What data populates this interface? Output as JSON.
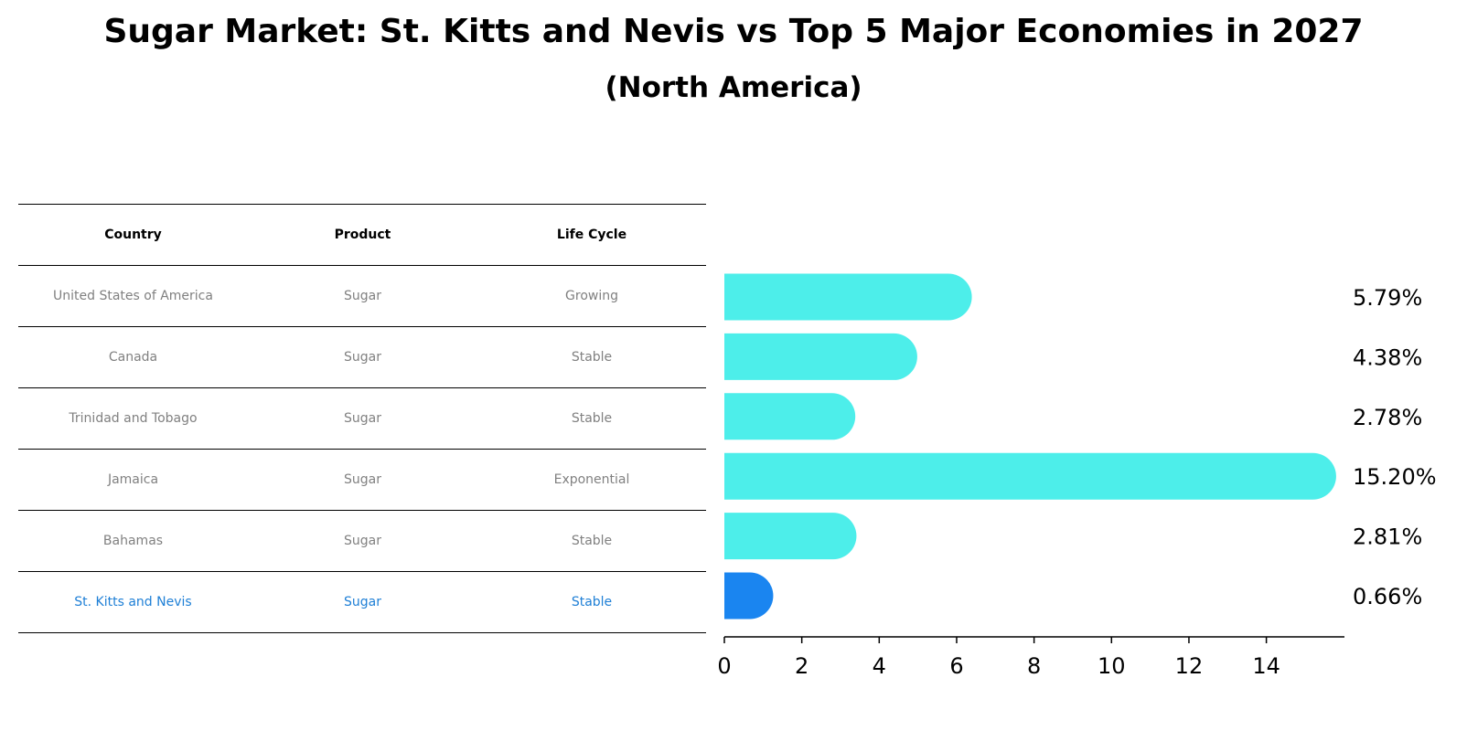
{
  "title": "Sugar Market: St. Kitts and Nevis vs Top 5 Major Economies in 2027",
  "subtitle": "(North America)",
  "table": {
    "headers": [
      "Country",
      "Product",
      "Life Cycle"
    ],
    "rows": [
      [
        "United States of America",
        "Sugar",
        "Growing"
      ],
      [
        "Canada",
        "Sugar",
        "Stable"
      ],
      [
        "Trinidad and Tobago",
        "Sugar",
        "Stable"
      ],
      [
        "Jamaica",
        "Sugar",
        "Exponential"
      ],
      [
        "Bahamas",
        "Sugar",
        "Stable"
      ],
      [
        "St. Kitts and Nevis",
        "Sugar",
        "Stable"
      ]
    ]
  },
  "colors": {
    "bar": "#4deeea",
    "highlight_bar": "#1a85f0",
    "highlight_text": "#1e7fd6",
    "row_text": "#808080"
  },
  "chart_data": {
    "type": "bar",
    "orientation": "horizontal",
    "categories": [
      "United States of America",
      "Canada",
      "Trinidad and Tobago",
      "Jamaica",
      "Bahamas",
      "St. Kitts and Nevis"
    ],
    "values": [
      5.79,
      4.38,
      2.78,
      15.2,
      2.81,
      0.66
    ],
    "value_labels": [
      "5.79%",
      "4.38%",
      "2.78%",
      "15.20%",
      "2.81%",
      "0.66%"
    ],
    "highlight_index": 5,
    "xlim": [
      0,
      16
    ],
    "xticks": [
      0,
      2,
      4,
      6,
      8,
      10,
      12,
      14
    ],
    "grid": false
  }
}
